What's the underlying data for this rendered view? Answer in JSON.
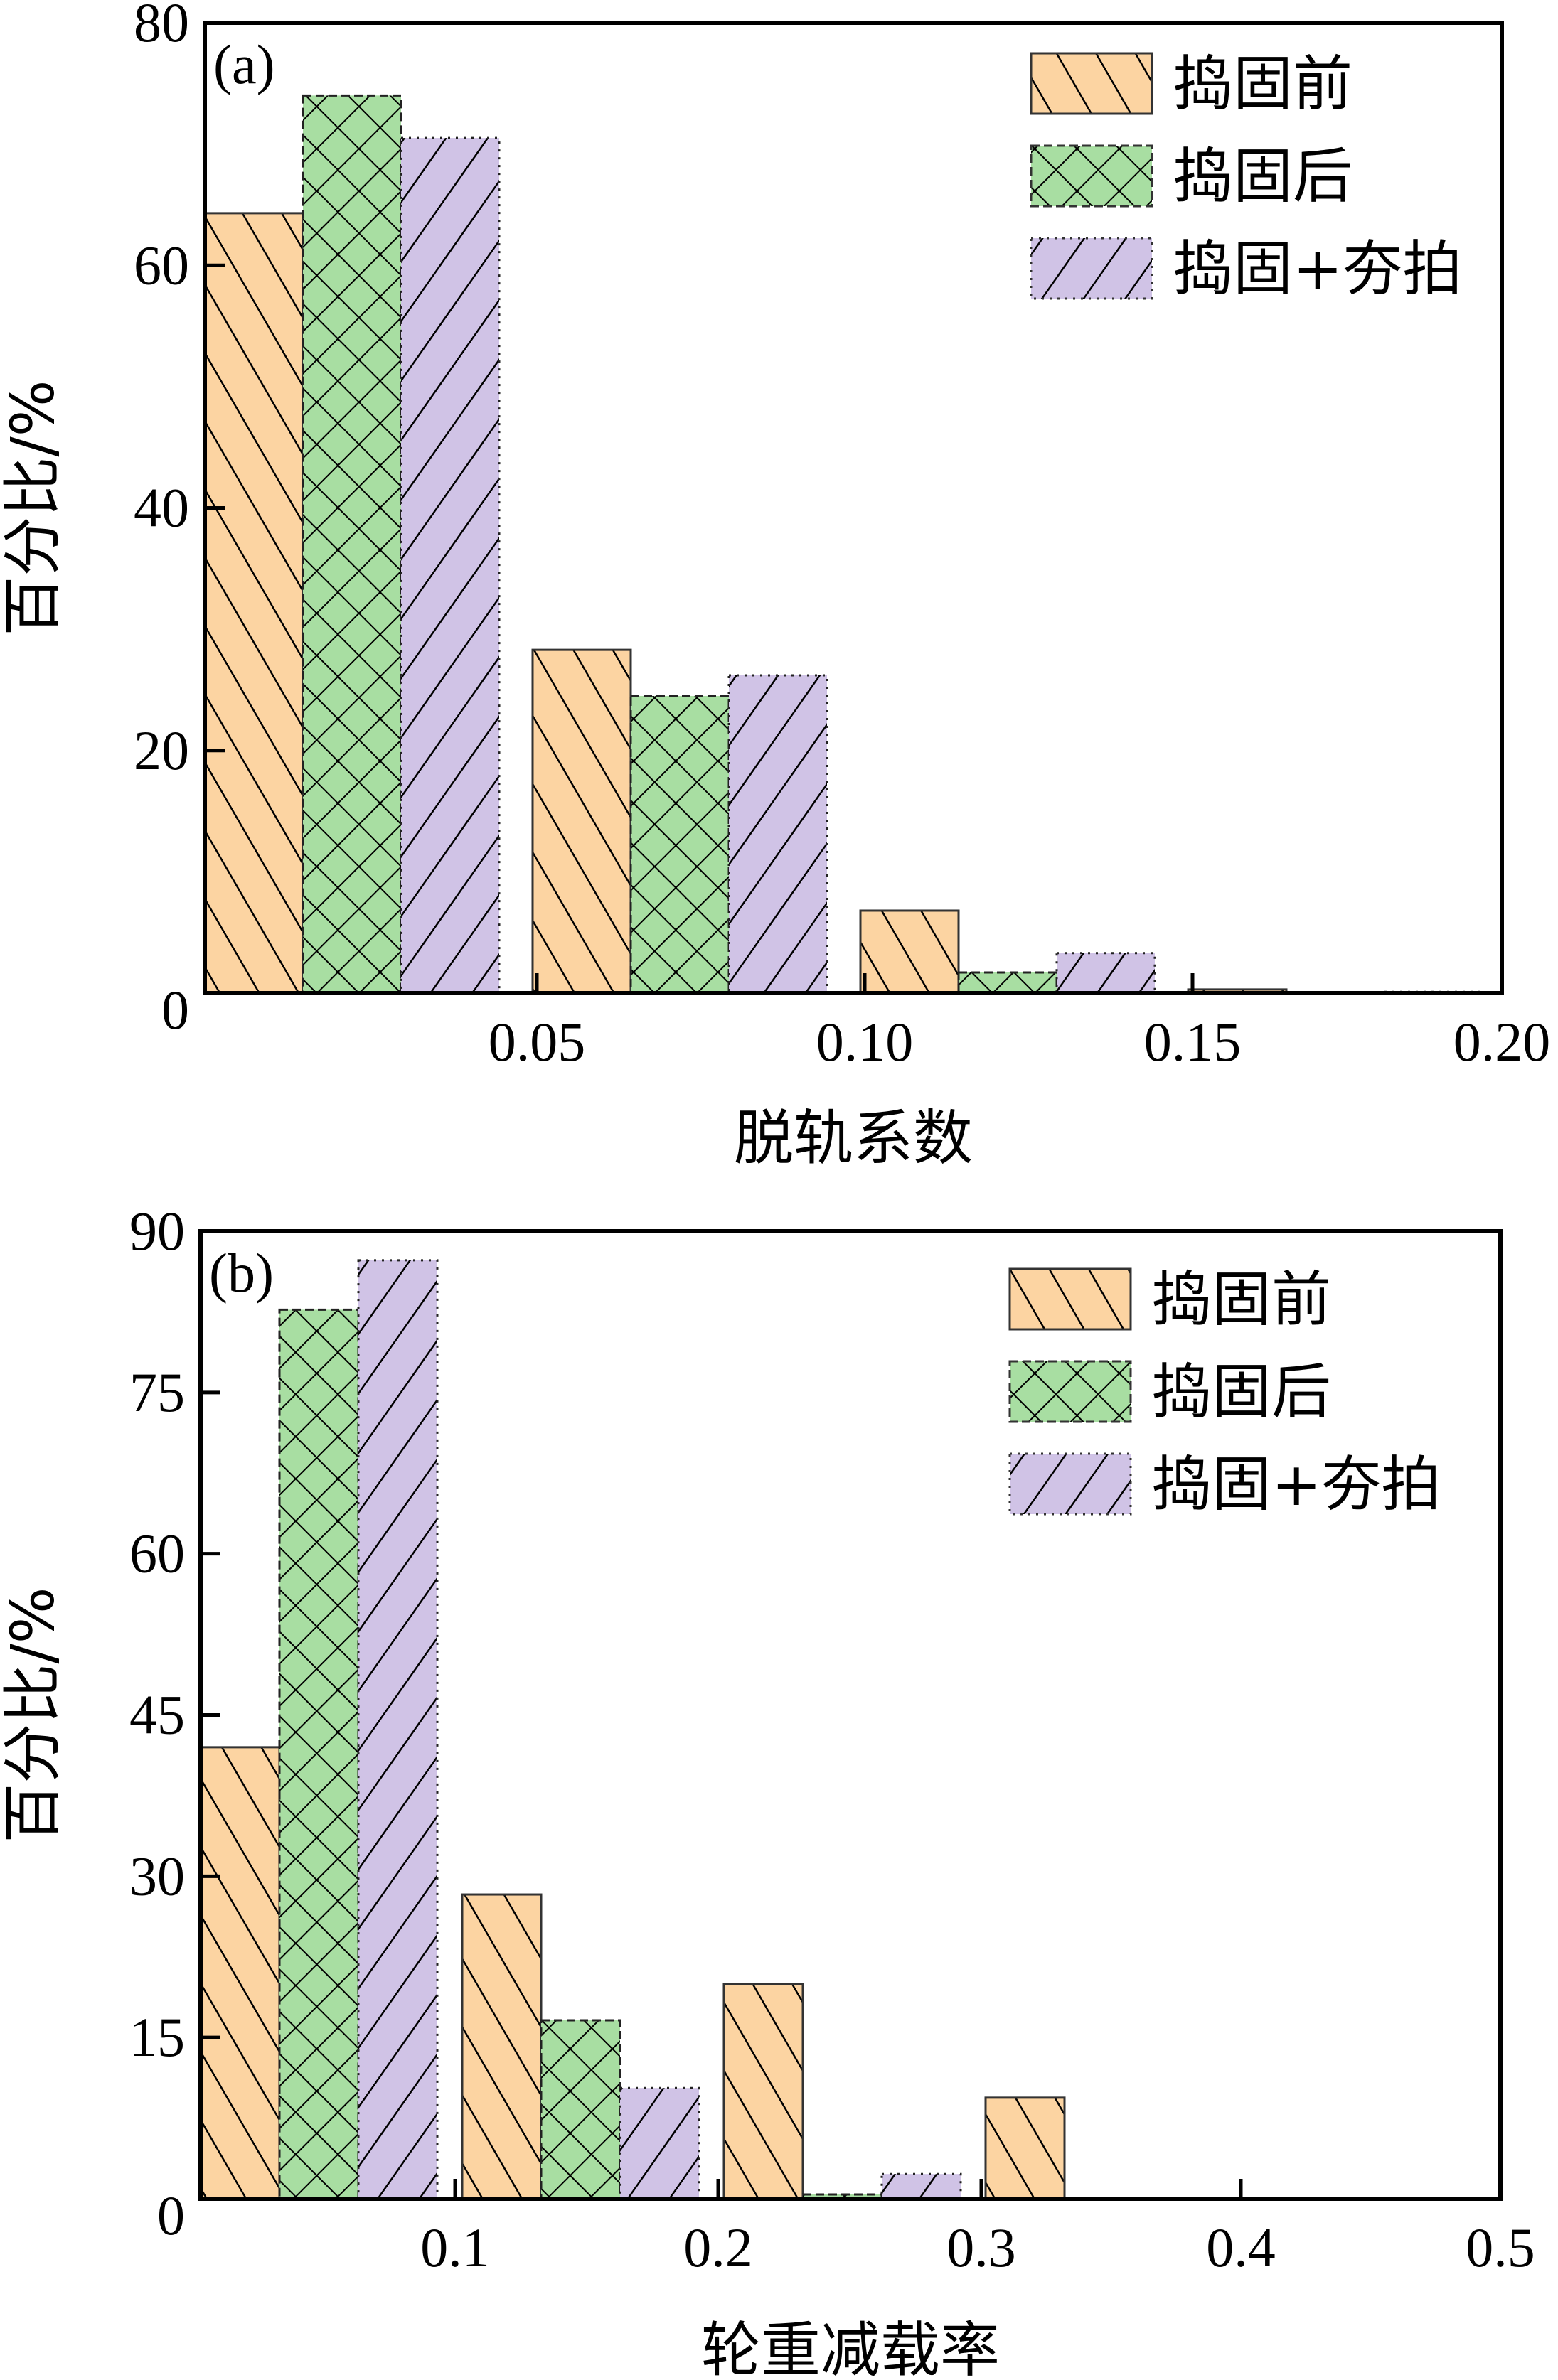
{
  "colors": {
    "before": "#FCD4A2",
    "after": "#A8DEA2",
    "after_plus": "#D0C3E6"
  },
  "chart_data": [
    {
      "type": "bar",
      "panel_label": "(a)",
      "xlabel": "脱轨系数",
      "ylabel": "百分比/%",
      "ylim": [
        0,
        80
      ],
      "yticks": [
        "0",
        "20",
        "40",
        "60",
        "80"
      ],
      "xticks": [
        "0.05",
        "0.10",
        "0.15",
        "0.20"
      ],
      "bins": [
        "0-0.05",
        "0.05-0.10",
        "0.10-0.15",
        "0.15-0.20"
      ],
      "legend_position": "top-right",
      "series": [
        {
          "name": "捣固前",
          "values": [
            64.3,
            28.3,
            6.8,
            0.3
          ]
        },
        {
          "name": "捣固后",
          "values": [
            74.0,
            24.5,
            1.7,
            0
          ]
        },
        {
          "name": "捣固+夯拍",
          "values": [
            70.5,
            26.2,
            3.3,
            0.1
          ]
        }
      ]
    },
    {
      "type": "bar",
      "panel_label": "(b)",
      "xlabel": "轮重减载率",
      "ylabel": "百分比/%",
      "ylim": [
        0,
        90
      ],
      "yticks": [
        "0",
        "15",
        "30",
        "45",
        "60",
        "75",
        "90"
      ],
      "xticks": [
        "0.1",
        "0.2",
        "0.3",
        "0.4",
        "0.5"
      ],
      "bins": [
        "0-0.1",
        "0.1-0.2",
        "0.2-0.3",
        "0.3-0.4",
        "0.4-0.5"
      ],
      "legend_position": "top-right",
      "series": [
        {
          "name": "捣固前",
          "values": [
            42.0,
            28.3,
            20.0,
            9.4,
            0
          ]
        },
        {
          "name": "捣固后",
          "values": [
            82.7,
            16.6,
            0.4,
            0,
            0
          ]
        },
        {
          "name": "捣固+夯拍",
          "values": [
            87.3,
            10.3,
            2.3,
            0,
            0
          ]
        }
      ]
    }
  ]
}
